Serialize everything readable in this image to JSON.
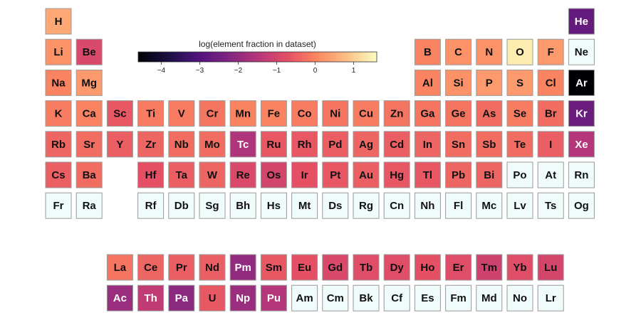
{
  "chart_data": {
    "type": "heatmap",
    "title": "",
    "colorbar": {
      "label": "log(element fraction in dataset)",
      "range": [
        -4.6,
        1.6
      ],
      "ticks": [
        -4,
        -3,
        -2,
        -1,
        0,
        1
      ],
      "tick_labels": [
        "−4",
        "−3",
        "−2",
        "−1",
        "0",
        "1"
      ],
      "colormap": "magma",
      "no_data_color": "#f0fbfb"
    },
    "elements": [
      {
        "symbol": "H",
        "period": 1,
        "group": 1,
        "value": 0.5
      },
      {
        "symbol": "He",
        "period": 1,
        "group": 18,
        "value": -2.7
      },
      {
        "symbol": "Li",
        "period": 2,
        "group": 1,
        "value": 0.2
      },
      {
        "symbol": "Be",
        "period": 2,
        "group": 2,
        "value": -0.9
      },
      {
        "symbol": "B",
        "period": 2,
        "group": 13,
        "value": 0.0
      },
      {
        "symbol": "C",
        "period": 2,
        "group": 14,
        "value": 0.2
      },
      {
        "symbol": "N",
        "period": 2,
        "group": 15,
        "value": 0.2
      },
      {
        "symbol": "O",
        "period": 2,
        "group": 16,
        "value": 1.4
      },
      {
        "symbol": "F",
        "period": 2,
        "group": 17,
        "value": 0.3
      },
      {
        "symbol": "Ne",
        "period": 2,
        "group": 18,
        "value": null
      },
      {
        "symbol": "Na",
        "period": 3,
        "group": 1,
        "value": 0.0
      },
      {
        "symbol": "Mg",
        "period": 3,
        "group": 2,
        "value": 0.3
      },
      {
        "symbol": "Al",
        "period": 3,
        "group": 13,
        "value": 0.0
      },
      {
        "symbol": "Si",
        "period": 3,
        "group": 14,
        "value": 0.2
      },
      {
        "symbol": "P",
        "period": 3,
        "group": 15,
        "value": 0.3
      },
      {
        "symbol": "S",
        "period": 3,
        "group": 16,
        "value": 0.3
      },
      {
        "symbol": "Cl",
        "period": 3,
        "group": 17,
        "value": 0.0
      },
      {
        "symbol": "Ar",
        "period": 3,
        "group": 18,
        "value": -4.6
      },
      {
        "symbol": "K",
        "period": 4,
        "group": 1,
        "value": -0.1
      },
      {
        "symbol": "Ca",
        "period": 4,
        "group": 2,
        "value": 0.0
      },
      {
        "symbol": "Sc",
        "period": 4,
        "group": 3,
        "value": -0.6
      },
      {
        "symbol": "Ti",
        "period": 4,
        "group": 4,
        "value": -0.1
      },
      {
        "symbol": "V",
        "period": 4,
        "group": 5,
        "value": -0.1
      },
      {
        "symbol": "Cr",
        "period": 4,
        "group": 6,
        "value": -0.2
      },
      {
        "symbol": "Mn",
        "period": 4,
        "group": 7,
        "value": 0.0
      },
      {
        "symbol": "Fe",
        "period": 4,
        "group": 8,
        "value": 0.0
      },
      {
        "symbol": "Co",
        "period": 4,
        "group": 9,
        "value": -0.1
      },
      {
        "symbol": "Ni",
        "period": 4,
        "group": 10,
        "value": -0.2
      },
      {
        "symbol": "Cu",
        "period": 4,
        "group": 11,
        "value": -0.1
      },
      {
        "symbol": "Zn",
        "period": 4,
        "group": 12,
        "value": -0.2
      },
      {
        "symbol": "Ga",
        "period": 4,
        "group": 13,
        "value": -0.2
      },
      {
        "symbol": "Ge",
        "period": 4,
        "group": 14,
        "value": -0.2
      },
      {
        "symbol": "As",
        "period": 4,
        "group": 15,
        "value": -0.3
      },
      {
        "symbol": "Se",
        "period": 4,
        "group": 16,
        "value": -0.1
      },
      {
        "symbol": "Br",
        "period": 4,
        "group": 17,
        "value": -0.3
      },
      {
        "symbol": "Kr",
        "period": 4,
        "group": 18,
        "value": -2.6
      },
      {
        "symbol": "Rb",
        "period": 5,
        "group": 1,
        "value": -0.4
      },
      {
        "symbol": "Sr",
        "period": 5,
        "group": 2,
        "value": -0.3
      },
      {
        "symbol": "Y",
        "period": 5,
        "group": 3,
        "value": -0.5
      },
      {
        "symbol": "Zr",
        "period": 5,
        "group": 4,
        "value": -0.4
      },
      {
        "symbol": "Nb",
        "period": 5,
        "group": 5,
        "value": -0.3
      },
      {
        "symbol": "Mo",
        "period": 5,
        "group": 6,
        "value": -0.3
      },
      {
        "symbol": "Tc",
        "period": 5,
        "group": 7,
        "value": -1.6
      },
      {
        "symbol": "Ru",
        "period": 5,
        "group": 8,
        "value": -0.6
      },
      {
        "symbol": "Rh",
        "period": 5,
        "group": 9,
        "value": -0.6
      },
      {
        "symbol": "Pd",
        "period": 5,
        "group": 10,
        "value": -0.5
      },
      {
        "symbol": "Ag",
        "period": 5,
        "group": 11,
        "value": -0.4
      },
      {
        "symbol": "Cd",
        "period": 5,
        "group": 12,
        "value": -0.5
      },
      {
        "symbol": "In",
        "period": 5,
        "group": 13,
        "value": -0.4
      },
      {
        "symbol": "Sn",
        "period": 5,
        "group": 14,
        "value": -0.3
      },
      {
        "symbol": "Sb",
        "period": 5,
        "group": 15,
        "value": -0.3
      },
      {
        "symbol": "Te",
        "period": 5,
        "group": 16,
        "value": -0.3
      },
      {
        "symbol": "I",
        "period": 5,
        "group": 17,
        "value": -0.5
      },
      {
        "symbol": "Xe",
        "period": 5,
        "group": 18,
        "value": -1.5
      },
      {
        "symbol": "Cs",
        "period": 6,
        "group": 1,
        "value": -0.5
      },
      {
        "symbol": "Ba",
        "period": 6,
        "group": 2,
        "value": -0.3
      },
      {
        "symbol": "Hf",
        "period": 6,
        "group": 4,
        "value": -0.7
      },
      {
        "symbol": "Ta",
        "period": 6,
        "group": 5,
        "value": -0.5
      },
      {
        "symbol": "W",
        "period": 6,
        "group": 6,
        "value": -0.4
      },
      {
        "symbol": "Re",
        "period": 6,
        "group": 7,
        "value": -0.9
      },
      {
        "symbol": "Os",
        "period": 6,
        "group": 8,
        "value": -1.0
      },
      {
        "symbol": "Ir",
        "period": 6,
        "group": 9,
        "value": -0.7
      },
      {
        "symbol": "Pt",
        "period": 6,
        "group": 10,
        "value": -0.6
      },
      {
        "symbol": "Au",
        "period": 6,
        "group": 11,
        "value": -0.5
      },
      {
        "symbol": "Hg",
        "period": 6,
        "group": 12,
        "value": -0.6
      },
      {
        "symbol": "Tl",
        "period": 6,
        "group": 13,
        "value": -0.6
      },
      {
        "symbol": "Pb",
        "period": 6,
        "group": 14,
        "value": -0.4
      },
      {
        "symbol": "Bi",
        "period": 6,
        "group": 15,
        "value": -0.4
      },
      {
        "symbol": "Po",
        "period": 6,
        "group": 16,
        "value": null
      },
      {
        "symbol": "At",
        "period": 6,
        "group": 17,
        "value": null
      },
      {
        "symbol": "Rn",
        "period": 6,
        "group": 18,
        "value": null
      },
      {
        "symbol": "Fr",
        "period": 7,
        "group": 1,
        "value": null
      },
      {
        "symbol": "Ra",
        "period": 7,
        "group": 2,
        "value": null
      },
      {
        "symbol": "Rf",
        "period": 7,
        "group": 4,
        "value": null
      },
      {
        "symbol": "Db",
        "period": 7,
        "group": 5,
        "value": null
      },
      {
        "symbol": "Sg",
        "period": 7,
        "group": 6,
        "value": null
      },
      {
        "symbol": "Bh",
        "period": 7,
        "group": 7,
        "value": null
      },
      {
        "symbol": "Hs",
        "period": 7,
        "group": 8,
        "value": null
      },
      {
        "symbol": "Mt",
        "period": 7,
        "group": 9,
        "value": null
      },
      {
        "symbol": "Ds",
        "period": 7,
        "group": 10,
        "value": null
      },
      {
        "symbol": "Rg",
        "period": 7,
        "group": 11,
        "value": null
      },
      {
        "symbol": "Cn",
        "period": 7,
        "group": 12,
        "value": null
      },
      {
        "symbol": "Nh",
        "period": 7,
        "group": 13,
        "value": null
      },
      {
        "symbol": "Fl",
        "period": 7,
        "group": 14,
        "value": null
      },
      {
        "symbol": "Mc",
        "period": 7,
        "group": 15,
        "value": null
      },
      {
        "symbol": "Lv",
        "period": 7,
        "group": 16,
        "value": null
      },
      {
        "symbol": "Ts",
        "period": 7,
        "group": 17,
        "value": null
      },
      {
        "symbol": "Og",
        "period": 7,
        "group": 18,
        "value": null
      },
      {
        "symbol": "La",
        "period": 9,
        "group": 3,
        "value": -0.2
      },
      {
        "symbol": "Ce",
        "period": 9,
        "group": 4,
        "value": -0.4
      },
      {
        "symbol": "Pr",
        "period": 9,
        "group": 5,
        "value": -0.5
      },
      {
        "symbol": "Nd",
        "period": 9,
        "group": 6,
        "value": -0.5
      },
      {
        "symbol": "Pm",
        "period": 9,
        "group": 7,
        "value": -2.0
      },
      {
        "symbol": "Sm",
        "period": 9,
        "group": 8,
        "value": -0.6
      },
      {
        "symbol": "Eu",
        "period": 9,
        "group": 9,
        "value": -0.7
      },
      {
        "symbol": "Gd",
        "period": 9,
        "group": 10,
        "value": -0.9
      },
      {
        "symbol": "Tb",
        "period": 9,
        "group": 11,
        "value": -0.8
      },
      {
        "symbol": "Dy",
        "period": 9,
        "group": 12,
        "value": -0.8
      },
      {
        "symbol": "Ho",
        "period": 9,
        "group": 13,
        "value": -0.7
      },
      {
        "symbol": "Er",
        "period": 9,
        "group": 14,
        "value": -0.8
      },
      {
        "symbol": "Tm",
        "period": 9,
        "group": 15,
        "value": -1.1
      },
      {
        "symbol": "Yb",
        "period": 9,
        "group": 16,
        "value": -0.8
      },
      {
        "symbol": "Lu",
        "period": 9,
        "group": 17,
        "value": -1.0
      },
      {
        "symbol": "Ac",
        "period": 10,
        "group": 3,
        "value": -1.9
      },
      {
        "symbol": "Th",
        "period": 10,
        "group": 4,
        "value": -1.3
      },
      {
        "symbol": "Pa",
        "period": 10,
        "group": 5,
        "value": -2.1
      },
      {
        "symbol": "U",
        "period": 10,
        "group": 6,
        "value": -0.6
      },
      {
        "symbol": "Np",
        "period": 10,
        "group": 7,
        "value": -1.9
      },
      {
        "symbol": "Pu",
        "period": 10,
        "group": 8,
        "value": -1.5
      },
      {
        "symbol": "Am",
        "period": 10,
        "group": 9,
        "value": null
      },
      {
        "symbol": "Cm",
        "period": 10,
        "group": 10,
        "value": null
      },
      {
        "symbol": "Bk",
        "period": 10,
        "group": 11,
        "value": null
      },
      {
        "symbol": "Cf",
        "period": 10,
        "group": 12,
        "value": null
      },
      {
        "symbol": "Es",
        "period": 10,
        "group": 13,
        "value": null
      },
      {
        "symbol": "Fm",
        "period": 10,
        "group": 14,
        "value": null
      },
      {
        "symbol": "Md",
        "period": 10,
        "group": 15,
        "value": null
      },
      {
        "symbol": "No",
        "period": 10,
        "group": 16,
        "value": null
      },
      {
        "symbol": "Lr",
        "period": 10,
        "group": 17,
        "value": null
      }
    ]
  }
}
